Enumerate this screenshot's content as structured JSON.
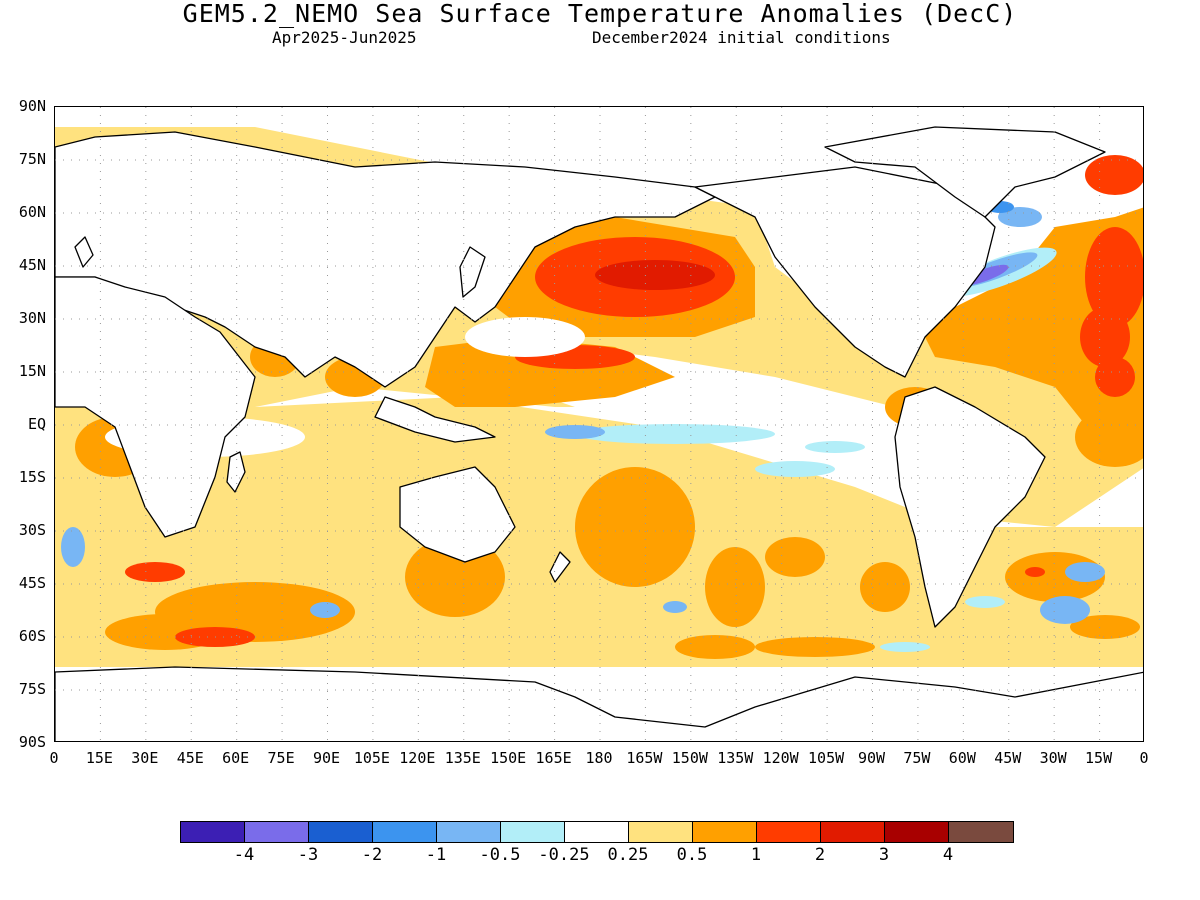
{
  "title": "GEM5.2_NEMO Sea Surface Temperature Anomalies (DecC)",
  "period": "Apr2025-Jun2025",
  "initial_conditions": "December2024 initial conditions",
  "lat_labels": [
    "90N",
    "75N",
    "60N",
    "45N",
    "30N",
    "15N",
    "EQ",
    "15S",
    "30S",
    "45S",
    "60S",
    "75S",
    "90S"
  ],
  "lon_labels": [
    "0",
    "15E",
    "30E",
    "45E",
    "60E",
    "75E",
    "90E",
    "105E",
    "120E",
    "135E",
    "150E",
    "165E",
    "180",
    "165W",
    "150W",
    "135W",
    "120W",
    "105W",
    "90W",
    "75W",
    "60W",
    "45W",
    "30W",
    "15W",
    "0"
  ],
  "colorbar": {
    "colors": [
      "#3c1fb4",
      "#7a6cea",
      "#1a5fd1",
      "#3c94ef",
      "#78b6f4",
      "#b2eef8",
      "#ffffff",
      "#ffe27f",
      "#ffa000",
      "#ff3c00",
      "#e11b00",
      "#a80000",
      "#7a4a3e"
    ],
    "labels": [
      "-4",
      "-3",
      "-2",
      "-1",
      "-0.5",
      "-0.25",
      "0.25",
      "0.5",
      "1",
      "2",
      "3",
      "4"
    ]
  },
  "map_colors": {
    "warm_weak": "#ffe27f",
    "warm_mid": "#ffa000",
    "warm_strong": "#ff3c00",
    "warm_very": "#e11b00",
    "cool_weak": "#b2eef8",
    "cool_mid": "#78b6f4",
    "cool_strong": "#3c94ef",
    "cool_very": "#7a6cea",
    "land": "#ffffff",
    "coast": "#000000",
    "grid": "#999999"
  }
}
